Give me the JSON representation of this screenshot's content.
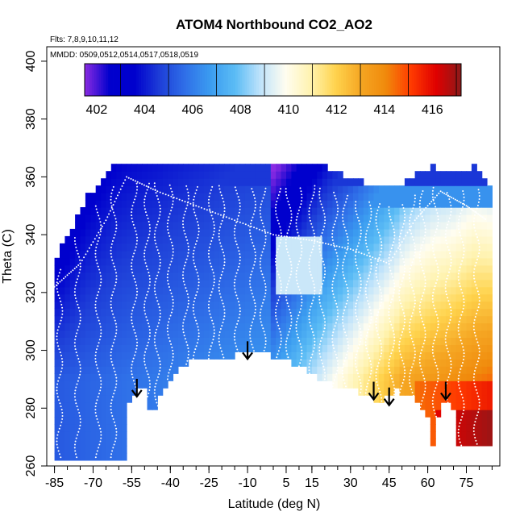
{
  "chart_data": {
    "type": "heatmap",
    "title": "ATOM4 Northbound CO2_AO2",
    "flights_note": "Flts: 7,8,9,10,11,12",
    "dates_note": "MMDD: 0509,0512,0514,0517,0518,0519",
    "xlabel": "Latitude (deg N)",
    "ylabel": "Theta (C)",
    "xlim": [
      -88,
      88
    ],
    "ylim": [
      260,
      405
    ],
    "x_ticks": [
      -85,
      -70,
      -55,
      -40,
      -25,
      -10,
      5,
      15,
      30,
      45,
      60,
      75
    ],
    "y_ticks": [
      260,
      280,
      300,
      320,
      340,
      360,
      380,
      400
    ],
    "colorbar": {
      "min": 401.5,
      "max": 417.2,
      "ticks": [
        402,
        404,
        406,
        408,
        410,
        412,
        414,
        416
      ],
      "colors": [
        "#8a2be2",
        "#0000cd",
        "#0000cd",
        "#1e3fd8",
        "#2f6fe8",
        "#3b9cf0",
        "#5bbcf5",
        "#bfe3fb",
        "#fffdf0",
        "#fff3b0",
        "#ffd34d",
        "#f5a623",
        "#f08a0c",
        "#ff3b00",
        "#e00000",
        "#8b1a1a"
      ]
    },
    "tropopause_curve": [
      {
        "lat": -85,
        "theta": 322
      },
      {
        "lat": -75,
        "theta": 330
      },
      {
        "lat": -65,
        "theta": 345
      },
      {
        "lat": -57,
        "theta": 360
      },
      {
        "lat": -45,
        "theta": 355
      },
      {
        "lat": -30,
        "theta": 350
      },
      {
        "lat": -15,
        "theta": 345
      },
      {
        "lat": 0,
        "theta": 340
      },
      {
        "lat": 15,
        "theta": 338
      },
      {
        "lat": 30,
        "theta": 335
      },
      {
        "lat": 45,
        "theta": 330
      },
      {
        "lat": 55,
        "theta": 345
      },
      {
        "lat": 65,
        "theta": 355
      },
      {
        "lat": 75,
        "theta": 350
      },
      {
        "lat": 83,
        "theta": 345
      }
    ],
    "arrows_lat": [
      -53,
      -10,
      39,
      45,
      67
    ],
    "arrows_theta_tip": [
      284,
      297,
      283,
      281,
      283
    ]
  }
}
